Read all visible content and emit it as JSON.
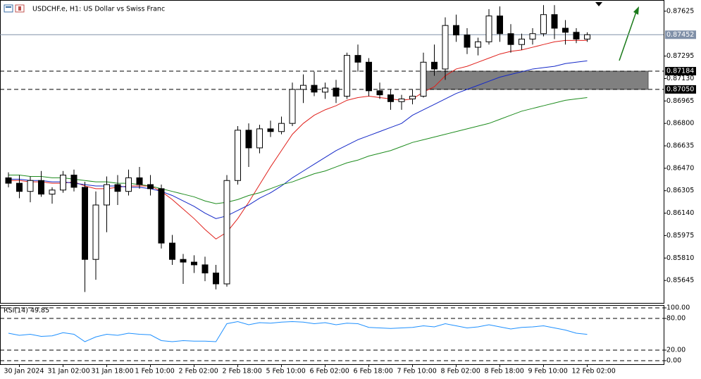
{
  "chart_data": [
    {
      "type": "candlestick",
      "title": "USDCHF.e, H1:  US Dollar vs Swiss Franc",
      "categories": [
        null,
        "30 Jan 2024",
        null,
        null,
        null,
        "31 Jan 02:00",
        null,
        null,
        null,
        "31 Jan 18:00",
        null,
        null,
        null,
        "1 Feb 10:00",
        null,
        null,
        null,
        "2 Feb 02:00",
        null,
        null,
        null,
        "2 Feb 18:00",
        null,
        null,
        null,
        "5 Feb 10:00",
        null,
        null,
        null,
        "6 Feb 02:00",
        null,
        null,
        null,
        "6 Feb 18:00",
        null,
        null,
        null,
        "7 Feb 10:00",
        null,
        null,
        null,
        "8 Feb 02:00",
        null,
        null,
        null,
        "8 Feb 18:00",
        null,
        null,
        null,
        "9 Feb 10:00",
        null,
        null,
        null,
        "12 Feb 02:00"
      ],
      "open": [
        0.864,
        0.8636,
        0.863,
        0.8638,
        0.8628,
        0.8631,
        0.8642,
        0.8633,
        0.858,
        0.862,
        0.8635,
        0.863,
        0.864,
        0.8635,
        0.8632,
        0.8592,
        0.858,
        0.8578,
        0.8576,
        0.857,
        0.8562,
        0.8638,
        0.8675,
        0.8662,
        0.8676,
        0.8674,
        0.868,
        0.8705,
        0.8708,
        0.8703,
        0.8706,
        0.87,
        0.873,
        0.8725,
        0.8704,
        0.8701,
        0.8696,
        0.8698,
        0.87,
        0.8725,
        0.872,
        0.8752,
        0.8745,
        0.8736,
        0.874,
        0.8759,
        0.8746,
        0.8738,
        0.8742,
        0.8746,
        0.876,
        0.875,
        0.8747,
        0.8742
      ],
      "high": [
        0.8644,
        0.8642,
        0.8641,
        0.8645,
        0.8633,
        0.8645,
        0.8646,
        0.8637,
        0.863,
        0.8641,
        0.8642,
        0.8646,
        0.8648,
        0.8642,
        0.8635,
        0.8598,
        0.8584,
        0.8583,
        0.8582,
        0.8576,
        0.8642,
        0.8678,
        0.868,
        0.8679,
        0.8682,
        0.8685,
        0.871,
        0.8716,
        0.8718,
        0.871,
        0.8712,
        0.8732,
        0.8738,
        0.8728,
        0.871,
        0.8705,
        0.8701,
        0.8705,
        0.8732,
        0.8738,
        0.8758,
        0.876,
        0.875,
        0.8743,
        0.8764,
        0.8766,
        0.8753,
        0.8746,
        0.875,
        0.8767,
        0.8767,
        0.8756,
        0.875,
        0.8747
      ],
      "low": [
        0.8633,
        0.8625,
        0.8622,
        0.8626,
        0.8621,
        0.8629,
        0.863,
        0.8556,
        0.8565,
        0.86,
        0.862,
        0.8627,
        0.8632,
        0.8627,
        0.8588,
        0.8576,
        0.8562,
        0.857,
        0.8564,
        0.8558,
        0.856,
        0.8635,
        0.8648,
        0.8658,
        0.867,
        0.8672,
        0.8678,
        0.8695,
        0.87,
        0.8698,
        0.8695,
        0.8698,
        0.8718,
        0.87,
        0.8698,
        0.869,
        0.869,
        0.8694,
        0.8699,
        0.8715,
        0.8712,
        0.874,
        0.8731,
        0.873,
        0.8738,
        0.874,
        0.8732,
        0.8734,
        0.8738,
        0.8744,
        0.8742,
        0.8738,
        0.8739,
        0.874
      ],
      "close": [
        0.8636,
        0.863,
        0.8638,
        0.8628,
        0.8631,
        0.8642,
        0.8633,
        0.858,
        0.862,
        0.8635,
        0.863,
        0.864,
        0.8635,
        0.8632,
        0.8592,
        0.858,
        0.8578,
        0.8576,
        0.857,
        0.8562,
        0.8638,
        0.8675,
        0.8662,
        0.8676,
        0.8674,
        0.868,
        0.8705,
        0.8708,
        0.8703,
        0.8706,
        0.87,
        0.873,
        0.8725,
        0.8704,
        0.8701,
        0.8696,
        0.8698,
        0.87,
        0.8725,
        0.872,
        0.8752,
        0.8745,
        0.8736,
        0.874,
        0.8759,
        0.8746,
        0.8738,
        0.8742,
        0.8746,
        0.876,
        0.875,
        0.8747,
        0.8742,
        0.87452
      ],
      "lines": [
        {
          "color": "#e0201b",
          "values": [
            0.8638,
            0.8638,
            0.8637,
            0.8637,
            0.8636,
            0.8636,
            0.8637,
            0.8634,
            0.8632,
            0.8632,
            0.8633,
            0.8634,
            0.8634,
            0.8634,
            0.863,
            0.8624,
            0.8617,
            0.861,
            0.8602,
            0.8595,
            0.86,
            0.861,
            0.8622,
            0.8635,
            0.8648,
            0.866,
            0.8672,
            0.868,
            0.8686,
            0.869,
            0.8693,
            0.8697,
            0.8699,
            0.87,
            0.8699,
            0.8698,
            0.8697,
            0.8698,
            0.8703,
            0.8707,
            0.8715,
            0.872,
            0.8722,
            0.8725,
            0.8728,
            0.8731,
            0.8733,
            0.8734,
            0.8736,
            0.8738,
            0.874,
            0.8741,
            0.8741,
            0.8741
          ]
        },
        {
          "color": "#1428c8",
          "values": [
            0.8639,
            0.8639,
            0.8638,
            0.8638,
            0.8637,
            0.8637,
            0.8636,
            0.8635,
            0.8634,
            0.8634,
            0.8634,
            0.8633,
            0.8633,
            0.8632,
            0.863,
            0.8627,
            0.8623,
            0.8619,
            0.8614,
            0.861,
            0.8612,
            0.8616,
            0.862,
            0.8625,
            0.8629,
            0.8634,
            0.864,
            0.8645,
            0.865,
            0.8655,
            0.866,
            0.8664,
            0.8668,
            0.8671,
            0.8674,
            0.8677,
            0.868,
            0.8686,
            0.869,
            0.8694,
            0.8698,
            0.8702,
            0.8705,
            0.8708,
            0.8711,
            0.8714,
            0.8716,
            0.8718,
            0.872,
            0.8721,
            0.8722,
            0.8724,
            0.8725,
            0.8726
          ]
        },
        {
          "color": "#1e8c1e",
          "values": [
            0.8642,
            0.8642,
            0.8641,
            0.8641,
            0.864,
            0.864,
            0.8639,
            0.8638,
            0.8637,
            0.8637,
            0.8636,
            0.8636,
            0.8635,
            0.8634,
            0.8632,
            0.863,
            0.8628,
            0.8626,
            0.8623,
            0.8621,
            0.8622,
            0.8624,
            0.8627,
            0.8629,
            0.8632,
            0.8635,
            0.8637,
            0.864,
            0.8643,
            0.8645,
            0.8648,
            0.8651,
            0.8653,
            0.8656,
            0.8658,
            0.866,
            0.8663,
            0.8666,
            0.8668,
            0.867,
            0.8672,
            0.8674,
            0.8676,
            0.8678,
            0.868,
            0.8683,
            0.8686,
            0.8689,
            0.8691,
            0.8693,
            0.8695,
            0.8697,
            0.8698,
            0.8699
          ]
        }
      ],
      "levels": [
        0.87452,
        0.87184,
        {
          "value": 0.8705,
          "label": "0.87050"
        }
      ],
      "ylim": [
        0.8548,
        0.87697
      ],
      "yticks": [
        0.87625,
        0.87295,
        {
          "value": 0.8713,
          "label": "0.87130"
        },
        0.86965,
        {
          "value": 0.868,
          "label": "0.86800"
        },
        0.86635,
        {
          "value": 0.8647,
          "label": "0.86470"
        },
        0.86305,
        {
          "value": 0.8614,
          "label": "0.86140"
        },
        0.85975,
        {
          "value": 0.8581,
          "label": "0.85810"
        },
        0.85645
      ]
    },
    {
      "type": "line",
      "title": "RSI(14) 49.85",
      "color": "#1e90ff",
      "values": [
        52,
        48,
        50,
        46,
        47,
        53,
        50,
        36,
        45,
        50,
        48,
        52,
        50,
        49,
        38,
        36,
        38,
        37,
        37,
        36,
        70,
        74,
        68,
        72,
        71,
        73,
        74,
        73,
        70,
        72,
        68,
        71,
        70,
        63,
        62,
        61,
        62,
        63,
        66,
        64,
        70,
        66,
        62,
        64,
        68,
        64,
        60,
        63,
        64,
        66,
        62,
        58,
        52,
        49.85
      ],
      "ylim": [
        0,
        100
      ],
      "yticks": [
        {
          "value": 100,
          "label": "100.00"
        },
        {
          "value": 80,
          "label": "80.00"
        },
        {
          "value": 20,
          "label": "20.00"
        },
        {
          "value": 0,
          "label": "0.00"
        }
      ]
    }
  ]
}
